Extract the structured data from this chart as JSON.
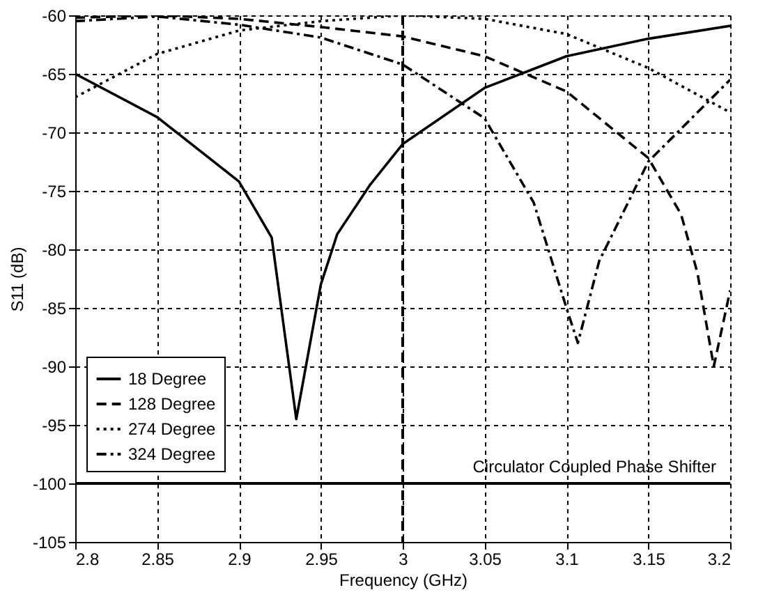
{
  "chart_data": {
    "type": "line",
    "xlabel": "Frequency (GHz)",
    "ylabel": "S11 (dB)",
    "xlim": [
      2.8,
      3.2
    ],
    "ylim": [
      -105,
      -60
    ],
    "xticks": [
      2.8,
      2.85,
      2.9,
      2.95,
      3,
      3.05,
      3.1,
      3.15,
      3.2
    ],
    "yticks": [
      -105,
      -100,
      -95,
      -90,
      -85,
      -80,
      -75,
      -70,
      -65,
      -60
    ],
    "grid": true,
    "legend": "left",
    "marker": "none",
    "series": [
      {
        "name": "18 Degree",
        "color": "#000000",
        "line_style": "solid",
        "x": [
          2.8,
          2.85,
          2.9,
          2.92,
          2.935,
          2.95,
          2.96,
          2.98,
          3.0,
          3.05,
          3.1,
          3.15,
          3.2
        ],
        "values": [
          -65,
          -68.7,
          -74.2,
          -79,
          -94.5,
          -83,
          -78.7,
          -74.5,
          -71,
          -66.2,
          -63.5,
          -62,
          -60.9
        ]
      },
      {
        "name": "128 Degree",
        "color": "#000000",
        "line_style": "dashed",
        "x": [
          2.8,
          2.85,
          2.9,
          2.95,
          3.0,
          3.05,
          3.1,
          3.15,
          3.17,
          3.18,
          3.19,
          3.2
        ],
        "values": [
          -60.2,
          -60,
          -60.3,
          -61,
          -61.8,
          -63.5,
          -66.5,
          -72.2,
          -77,
          -82,
          -90,
          -83.5
        ]
      },
      {
        "name": "274 Degree",
        "color": "#000000",
        "line_style": "dotted",
        "x": [
          2.8,
          2.85,
          2.9,
          2.95,
          3.0,
          3.05,
          3.1,
          3.15,
          3.2
        ],
        "values": [
          -67,
          -63.3,
          -61.3,
          -60.5,
          -60,
          -60.3,
          -61.6,
          -64.5,
          -68.3
        ]
      },
      {
        "name": "324 Degree",
        "color": "#000000",
        "line_style": "dashdot",
        "x": [
          2.8,
          2.85,
          2.9,
          2.95,
          3.0,
          3.05,
          3.08,
          3.1,
          3.107,
          3.12,
          3.15,
          3.2
        ],
        "values": [
          -60.5,
          -60.1,
          -60.8,
          -61.9,
          -64.2,
          -68.8,
          -76,
          -85,
          -88,
          -81,
          -72.5,
          -65.5
        ]
      }
    ],
    "ref_lines": [
      {
        "axis": "y",
        "value": -100,
        "label": "Circulator Coupled Phase Shifter",
        "color": "#000000",
        "line_style": "solid"
      },
      {
        "axis": "x",
        "value": 3.0,
        "label": null,
        "color": "#000000",
        "line_style": "dashed"
      }
    ]
  }
}
